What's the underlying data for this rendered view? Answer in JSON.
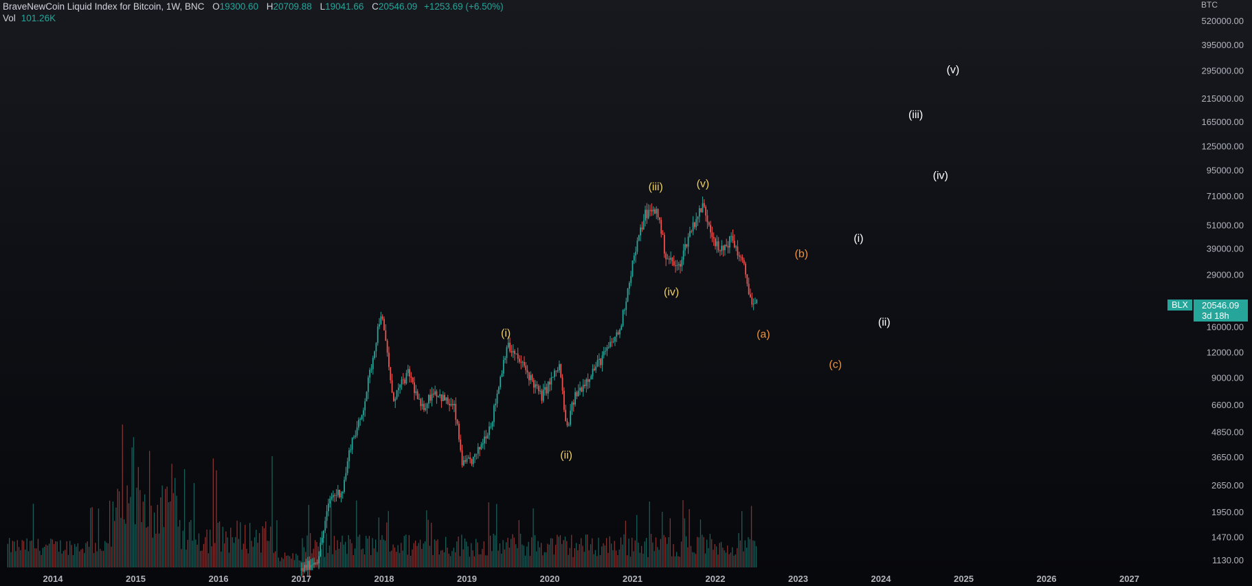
{
  "header": {
    "title": "BraveNewCoin Liquid Index for Bitcoin, 1W, BNC",
    "open_label": "O",
    "open": "19300.60",
    "high_label": "H",
    "high": "20709.88",
    "low_label": "L",
    "low": "19041.66",
    "close_label": "C",
    "close": "20546.09",
    "change": "+1253.69 (+6.50%)",
    "vol_label": "Vol",
    "vol": "101.26K"
  },
  "price_axis": {
    "unit": "BTC",
    "ticks": [
      "520000.00",
      "395000.00",
      "295000.00",
      "215000.00",
      "165000.00",
      "125000.00",
      "95000.00",
      "71000.00",
      "51000.00",
      "39000.00",
      "29000.00",
      "16000.00",
      "12000.00",
      "9000.00",
      "6600.00",
      "4850.00",
      "3650.00",
      "2650.00",
      "1950.00",
      "1470.00",
      "1130.00"
    ]
  },
  "price_tag": {
    "symbol": "BLX",
    "price": "20546.09",
    "countdown": "3d 18h"
  },
  "colors": {
    "up": "#26a69a",
    "down": "#ef5350",
    "wave_minor": "#f0d060",
    "wave_corr": "#f0923a",
    "wave_future": "#ffffff"
  },
  "chart_data": {
    "type": "candlestick",
    "title": "BraveNewCoin Liquid Index for Bitcoin, 1W, BNC",
    "timeframe": "1W",
    "y_scale": "log",
    "ylim": [
      1000,
      600000
    ],
    "xlim": [
      2013.45,
      2028.0
    ],
    "x_ticks": [
      "2014",
      "2015",
      "2016",
      "2017",
      "2018",
      "2019",
      "2020",
      "2021",
      "2022",
      "2023",
      "2024",
      "2025",
      "2026",
      "2027"
    ],
    "price_path": [
      [
        2017.0,
        1000
      ],
      [
        2017.2,
        1150
      ],
      [
        2017.35,
        2300
      ],
      [
        2017.5,
        2500
      ],
      [
        2017.6,
        4300
      ],
      [
        2017.72,
        5600
      ],
      [
        2017.85,
        10500
      ],
      [
        2017.96,
        19000
      ],
      [
        2018.05,
        11000
      ],
      [
        2018.1,
        7000
      ],
      [
        2018.3,
        9500
      ],
      [
        2018.45,
        6200
      ],
      [
        2018.6,
        7800
      ],
      [
        2018.85,
        6300
      ],
      [
        2018.95,
        3300
      ],
      [
        2019.1,
        3600
      ],
      [
        2019.3,
        5500
      ],
      [
        2019.48,
        13000
      ],
      [
        2019.7,
        10000
      ],
      [
        2019.9,
        7200
      ],
      [
        2020.12,
        10300
      ],
      [
        2020.2,
        4900
      ],
      [
        2020.3,
        7200
      ],
      [
        2020.5,
        9500
      ],
      [
        2020.65,
        11500
      ],
      [
        2020.85,
        15500
      ],
      [
        2021.0,
        33000
      ],
      [
        2021.15,
        58000
      ],
      [
        2021.3,
        60000
      ],
      [
        2021.4,
        36000
      ],
      [
        2021.55,
        31000
      ],
      [
        2021.7,
        48000
      ],
      [
        2021.85,
        64000
      ],
      [
        2021.95,
        48000
      ],
      [
        2022.05,
        37000
      ],
      [
        2022.2,
        44000
      ],
      [
        2022.35,
        31000
      ],
      [
        2022.45,
        20000
      ],
      [
        2022.5,
        20546.09
      ]
    ],
    "volume_note": "weekly volume histogram",
    "wave_labels": [
      {
        "text": "(i)",
        "x": 2019.47,
        "y": 15000,
        "group": "minor"
      },
      {
        "text": "(ii)",
        "x": 2020.2,
        "y": 3750,
        "group": "minor"
      },
      {
        "text": "(iii)",
        "x": 2021.28,
        "y": 79000,
        "group": "minor"
      },
      {
        "text": "(iv)",
        "x": 2021.47,
        "y": 24000,
        "group": "minor"
      },
      {
        "text": "(v)",
        "x": 2021.85,
        "y": 82000,
        "group": "minor"
      },
      {
        "text": "(a)",
        "x": 2022.58,
        "y": 14800,
        "group": "corrective"
      },
      {
        "text": "(b)",
        "x": 2023.04,
        "y": 37000,
        "group": "corrective"
      },
      {
        "text": "(c)",
        "x": 2023.45,
        "y": 10500,
        "group": "corrective"
      },
      {
        "text": "(i)",
        "x": 2023.73,
        "y": 44000,
        "group": "future"
      },
      {
        "text": "(ii)",
        "x": 2024.04,
        "y": 17000,
        "group": "future"
      },
      {
        "text": "(iii)",
        "x": 2024.42,
        "y": 180000,
        "group": "future"
      },
      {
        "text": "(iv)",
        "x": 2024.72,
        "y": 90000,
        "group": "future"
      },
      {
        "text": "(v)",
        "x": 2024.87,
        "y": 300000,
        "group": "future"
      }
    ]
  }
}
